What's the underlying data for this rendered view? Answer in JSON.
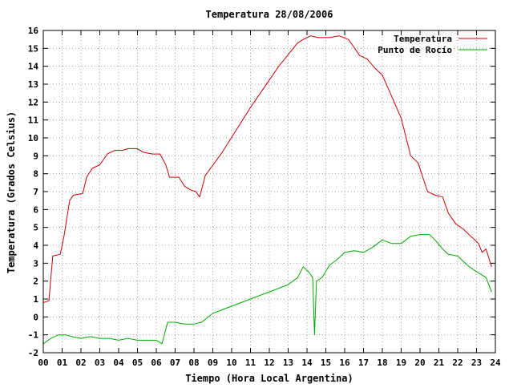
{
  "chart_data": {
    "type": "line",
    "title": "Temperatura 28/08/2006",
    "xlabel": "Tiempo (Hora Local Argentina)",
    "ylabel": "Temperatura (Grados Celsius)",
    "xlim": [
      0,
      24
    ],
    "ylim": [
      -2,
      16
    ],
    "x_ticks": [
      "00",
      "01",
      "02",
      "03",
      "04",
      "05",
      "06",
      "07",
      "08",
      "09",
      "10",
      "11",
      "12",
      "13",
      "14",
      "15",
      "16",
      "17",
      "18",
      "19",
      "20",
      "21",
      "22",
      "23",
      "24"
    ],
    "y_ticks": [
      "-2",
      "-1",
      "0",
      "1",
      "2",
      "3",
      "4",
      "5",
      "6",
      "7",
      "8",
      "9",
      "10",
      "11",
      "12",
      "13",
      "14",
      "15",
      "16"
    ],
    "grid": true,
    "legend_position": "top-right",
    "series": [
      {
        "name": "Temperatura",
        "color": "#cc0000",
        "points": [
          [
            0.0,
            0.8
          ],
          [
            0.3,
            0.9
          ],
          [
            0.5,
            3.4
          ],
          [
            0.9,
            3.5
          ],
          [
            1.1,
            4.5
          ],
          [
            1.4,
            6.5
          ],
          [
            1.6,
            6.8
          ],
          [
            2.1,
            6.9
          ],
          [
            2.3,
            7.8
          ],
          [
            2.6,
            8.3
          ],
          [
            3.0,
            8.5
          ],
          [
            3.4,
            9.1
          ],
          [
            3.8,
            9.3
          ],
          [
            4.2,
            9.3
          ],
          [
            4.5,
            9.4
          ],
          [
            5.0,
            9.4
          ],
          [
            5.3,
            9.2
          ],
          [
            5.8,
            9.1
          ],
          [
            6.2,
            9.1
          ],
          [
            6.5,
            8.5
          ],
          [
            6.7,
            7.8
          ],
          [
            7.2,
            7.8
          ],
          [
            7.5,
            7.3
          ],
          [
            7.8,
            7.1
          ],
          [
            8.1,
            7.0
          ],
          [
            8.3,
            6.7
          ],
          [
            8.6,
            7.9
          ],
          [
            9.5,
            9.2
          ],
          [
            11.0,
            11.7
          ],
          [
            12.5,
            14.0
          ],
          [
            13.5,
            15.3
          ],
          [
            13.8,
            15.5
          ],
          [
            14.2,
            15.7
          ],
          [
            14.6,
            15.6
          ],
          [
            15.2,
            15.6
          ],
          [
            15.7,
            15.7
          ],
          [
            16.2,
            15.5
          ],
          [
            16.4,
            15.2
          ],
          [
            16.8,
            14.6
          ],
          [
            17.2,
            14.4
          ],
          [
            17.6,
            13.9
          ],
          [
            18.0,
            13.5
          ],
          [
            18.5,
            12.3
          ],
          [
            19.0,
            11.1
          ],
          [
            19.5,
            9.0
          ],
          [
            19.9,
            8.6
          ],
          [
            20.4,
            7.0
          ],
          [
            20.8,
            6.8
          ],
          [
            21.2,
            6.7
          ],
          [
            21.5,
            5.8
          ],
          [
            21.9,
            5.2
          ],
          [
            22.3,
            4.9
          ],
          [
            22.7,
            4.5
          ],
          [
            23.1,
            4.1
          ],
          [
            23.3,
            3.6
          ],
          [
            23.5,
            3.8
          ],
          [
            23.8,
            2.8
          ]
        ]
      },
      {
        "name": "Punto de Rocío",
        "color": "#00aa00",
        "points": [
          [
            0.0,
            -1.5
          ],
          [
            0.4,
            -1.2
          ],
          [
            0.8,
            -1.0
          ],
          [
            1.2,
            -1.0
          ],
          [
            1.5,
            -1.1
          ],
          [
            2.0,
            -1.2
          ],
          [
            2.5,
            -1.1
          ],
          [
            3.0,
            -1.2
          ],
          [
            3.5,
            -1.2
          ],
          [
            4.0,
            -1.3
          ],
          [
            4.5,
            -1.2
          ],
          [
            5.0,
            -1.3
          ],
          [
            5.5,
            -1.3
          ],
          [
            6.0,
            -1.3
          ],
          [
            6.3,
            -1.5
          ],
          [
            6.6,
            -0.3
          ],
          [
            7.0,
            -0.3
          ],
          [
            7.5,
            -0.4
          ],
          [
            8.0,
            -0.4
          ],
          [
            8.4,
            -0.3
          ],
          [
            9.0,
            0.2
          ],
          [
            10.0,
            0.6
          ],
          [
            11.0,
            1.0
          ],
          [
            12.0,
            1.4
          ],
          [
            13.0,
            1.8
          ],
          [
            13.5,
            2.2
          ],
          [
            13.8,
            2.8
          ],
          [
            14.1,
            2.5
          ],
          [
            14.3,
            2.2
          ],
          [
            14.4,
            -1.0
          ],
          [
            14.5,
            2.0
          ],
          [
            14.8,
            2.2
          ],
          [
            15.2,
            2.9
          ],
          [
            15.6,
            3.2
          ],
          [
            16.0,
            3.6
          ],
          [
            16.5,
            3.7
          ],
          [
            17.0,
            3.6
          ],
          [
            17.5,
            3.9
          ],
          [
            18.0,
            4.3
          ],
          [
            18.5,
            4.1
          ],
          [
            19.0,
            4.1
          ],
          [
            19.5,
            4.5
          ],
          [
            20.0,
            4.6
          ],
          [
            20.5,
            4.6
          ],
          [
            20.8,
            4.3
          ],
          [
            21.2,
            3.8
          ],
          [
            21.5,
            3.5
          ],
          [
            22.0,
            3.4
          ],
          [
            22.5,
            2.9
          ],
          [
            22.9,
            2.6
          ],
          [
            23.2,
            2.4
          ],
          [
            23.5,
            2.2
          ],
          [
            23.8,
            1.4
          ]
        ]
      }
    ]
  }
}
